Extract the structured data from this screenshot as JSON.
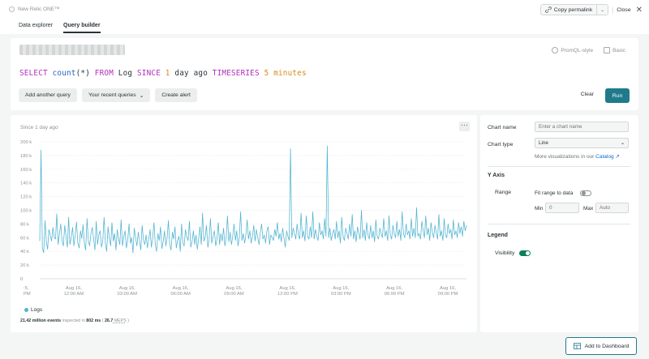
{
  "app": {
    "brand": "New Relic ONE™"
  },
  "header": {
    "permalink_label": "Copy permalink",
    "close_label": "Close",
    "tabs": [
      {
        "label": "Data explorer",
        "active": false
      },
      {
        "label": "Query builder",
        "active": true
      }
    ]
  },
  "query": {
    "modes": [
      "PromQL-style",
      "Basic"
    ],
    "nrql_tokens": [
      {
        "text": "SELECT ",
        "kind": "kw"
      },
      {
        "text": "count",
        "kind": "fn"
      },
      {
        "text": "(*) ",
        "kind": "txt"
      },
      {
        "text": "FROM ",
        "kind": "kw"
      },
      {
        "text": "Log ",
        "kind": "txt"
      },
      {
        "text": "SINCE ",
        "kind": "kw"
      },
      {
        "text": "1 ",
        "kind": "num"
      },
      {
        "text": "day ago ",
        "kind": "txt"
      },
      {
        "text": "TIMESERIES ",
        "kind": "kw"
      },
      {
        "text": "5 ",
        "kind": "num"
      },
      {
        "text": "minutes",
        "kind": "num"
      }
    ],
    "buttons": {
      "add_query": "Add another query",
      "recent_queries": "Your recent queries",
      "create_alert": "Create alert",
      "clear": "Clear",
      "run": "Run"
    }
  },
  "chart": {
    "subtitle": "Since 1 day ago",
    "menu_label": "···",
    "inspected_count": "21.42 million events",
    "inspected_mid": " inspected in ",
    "inspected_ms": "802 ms",
    "inspected_paren": " ( ",
    "inspected_rate": "26.7",
    "inspected_unit": " MEPS",
    "inspected_end": " )"
  },
  "chart_data": {
    "type": "line",
    "ylim": [
      0,
      200000
    ],
    "y_ticks": [
      {
        "value": 200000,
        "label": "200 k"
      },
      {
        "value": 180000,
        "label": "180 k"
      },
      {
        "value": 160000,
        "label": "160 k"
      },
      {
        "value": 140000,
        "label": "140 k"
      },
      {
        "value": 120000,
        "label": "120 k"
      },
      {
        "value": 100000,
        "label": "100 k"
      },
      {
        "value": 80000,
        "label": "80 k"
      },
      {
        "value": 60000,
        "label": "60 k"
      },
      {
        "value": 40000,
        "label": "40 k"
      },
      {
        "value": 20000,
        "label": "20 k"
      },
      {
        "value": 0,
        "label": "0"
      }
    ],
    "x_ticks": [
      {
        "x": 0,
        "line1": ":5,",
        "line2": "PM"
      },
      {
        "x": 1,
        "line1": "Aug 16,",
        "line2": "12:00 AM"
      },
      {
        "x": 2,
        "line1": "Aug 16,",
        "line2": "03:00 AM"
      },
      {
        "x": 3,
        "line1": "Aug 16,",
        "line2": "06:00 AM"
      },
      {
        "x": 4,
        "line1": "Aug 16,",
        "line2": "09:00 AM"
      },
      {
        "x": 5,
        "line1": "Aug 16,",
        "line2": "12:00 PM"
      },
      {
        "x": 6,
        "line1": "Aug 16,",
        "line2": "03:00 PM"
      },
      {
        "x": 7,
        "line1": "Aug 16,",
        "line2": "06:00 PM"
      },
      {
        "x": 8,
        "line1": "Aug 16,",
        "line2": "09:00 PM"
      }
    ],
    "grid": true,
    "series": [
      {
        "name": "Logs",
        "color": "#4fb3d1",
        "values": [
          55000,
          188000,
          45000,
          38000,
          85000,
          55000,
          43000,
          72000,
          64000,
          55000,
          75000,
          60000,
          58000,
          95000,
          50000,
          66000,
          80000,
          55000,
          48000,
          78000,
          62000,
          46000,
          90000,
          50000,
          60000,
          75000,
          48000,
          64000,
          83000,
          52000,
          45000,
          70000,
          59000,
          79000,
          52000,
          42000,
          88000,
          55000,
          48000,
          66000,
          75000,
          58000,
          42000,
          84000,
          50000,
          64000,
          70000,
          46000,
          55000,
          90000,
          52000,
          40000,
          76000,
          60000,
          48000,
          82000,
          55000,
          66000,
          42000,
          72000,
          58000,
          50000,
          86000,
          48000,
          62000,
          70000,
          45000,
          56000,
          80000,
          52000,
          60000,
          38000,
          74000,
          60000,
          48000,
          68000,
          55000,
          42000,
          78000,
          56000,
          50000,
          64000,
          45000,
          58000,
          72000,
          46000,
          60000,
          82000,
          50000,
          40000,
          66000,
          56000,
          76000,
          44000,
          54000,
          70000,
          48000,
          60000,
          85000,
          50000,
          42000,
          68000,
          58000,
          76000,
          45000,
          56000,
          62000,
          40000,
          80000,
          52000,
          48000,
          72000,
          60000,
          56000,
          84000,
          46000,
          54000,
          70000,
          50000,
          64000,
          43000,
          58000,
          76000,
          50000,
          96000,
          55000,
          60000,
          78000,
          46000,
          58000,
          88000,
          52000,
          62000,
          70000,
          48000,
          58000,
          82000,
          50000,
          66000,
          55000,
          74000,
          48000,
          60000,
          92000,
          54000,
          68000,
          50000,
          62000,
          80000,
          56000,
          70000,
          48000,
          60000,
          98000,
          56000,
          66000,
          52000,
          64000,
          86000,
          58000,
          70000,
          52000,
          62000,
          78000,
          55000,
          72000,
          60000,
          50000,
          68000,
          80000,
          58000,
          64000,
          52000,
          70000,
          76000,
          50000,
          64000,
          60000,
          56000,
          72000,
          62000,
          82000,
          58000,
          66000,
          54000,
          74000,
          60000,
          46000,
          70000,
          62000,
          56000,
          190000,
          60000,
          74000,
          66000,
          58000,
          80000,
          64000,
          58000,
          96000,
          60000,
          70000,
          55000,
          92000,
          62000,
          58000,
          76000,
          60000,
          98000,
          58000,
          72000,
          62000,
          56000,
          82000,
          64000,
          70000,
          58000,
          88000,
          62000,
          194000,
          60000,
          74000,
          56000,
          66000,
          72000,
          58000,
          84000,
          60000,
          70000,
          52000,
          90000,
          62000,
          56000,
          74000,
          66000,
          58000,
          80000,
          62000,
          94000,
          58000,
          70000,
          54000,
          76000,
          66000,
          58000,
          100000,
          60000,
          72000,
          56000,
          82000,
          64000,
          58000,
          78000,
          60000,
          70000,
          54000,
          86000,
          62000,
          58000,
          74000,
          66000,
          60000,
          88000,
          62000,
          70000,
          56000,
          92000,
          64000,
          58000,
          78000,
          66000,
          60000,
          84000,
          62000,
          72000,
          56000,
          98000,
          66000,
          60000,
          80000,
          64000,
          70000,
          58000,
          88000,
          62000,
          74000,
          60000,
          104000,
          62000,
          66000,
          58000,
          84000,
          70000,
          60000,
          92000,
          64000,
          74000,
          56000,
          82000,
          68000,
          60000,
          78000,
          66000,
          58000,
          94000,
          62000,
          70000,
          56000,
          88000,
          64000,
          60000,
          80000,
          66000,
          72000,
          58000,
          86000,
          64000,
          70000,
          60000,
          82000,
          66000,
          76000,
          62000,
          84000,
          70000,
          78000
        ]
      }
    ]
  },
  "side": {
    "chart_name_label": "Chart name",
    "chart_name_placeholder": "Enter a chart name",
    "chart_type_label": "Chart type",
    "chart_type_value": "Line",
    "more_viz_text": "More visualizations in our ",
    "catalog_link": "Catalog",
    "y_axis_title": "Y Axis",
    "range_label": "Range",
    "fit_range_label": "Fit range to data",
    "fit_range_on": false,
    "min_label": "Min",
    "min_placeholder": "0",
    "max_label": "Max",
    "max_placeholder": "Auto",
    "legend_title": "Legend",
    "visibility_label": "Visibility",
    "visibility_on": true
  },
  "footer": {
    "add_dashboard": "Add to Dashboard"
  }
}
